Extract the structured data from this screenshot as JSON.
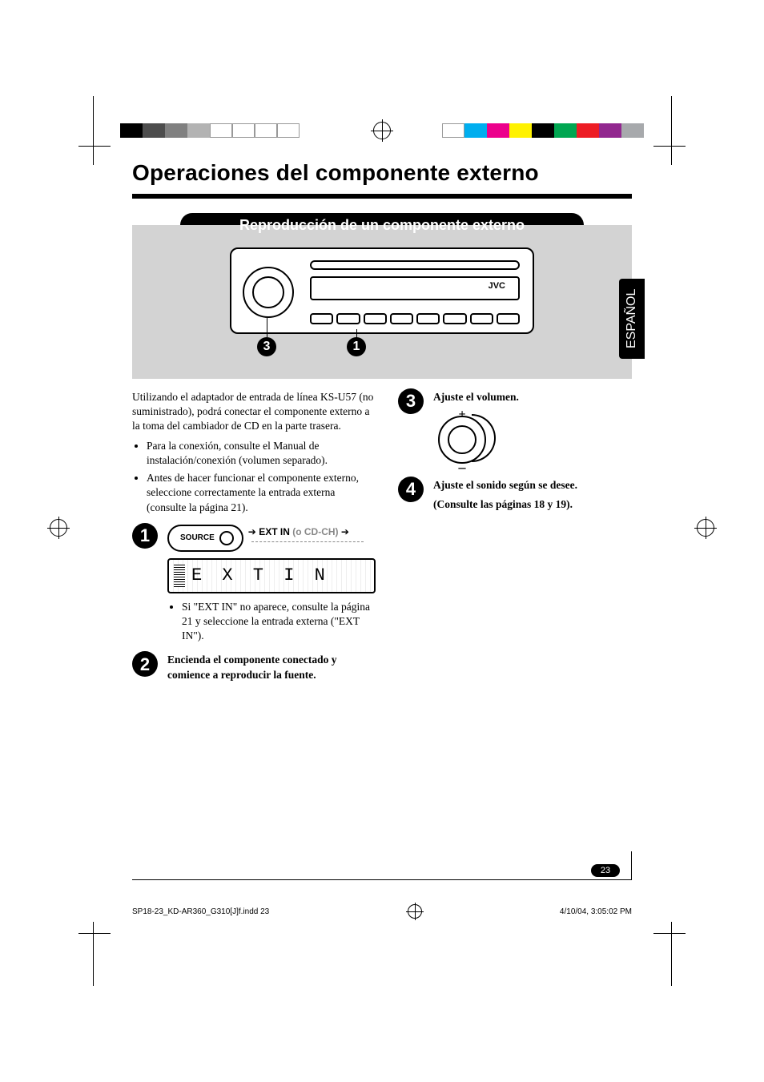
{
  "registration": {
    "left_bars": [
      "#000000",
      "#4d4d4d",
      "#808080",
      "#b3b3b3",
      "gap",
      "gap",
      "gap",
      "gap"
    ],
    "right_bars": [
      "gap",
      "#00aeef",
      "#ec008c",
      "#fff200",
      "#000000",
      "#00a651",
      "#ed1c24",
      "#92278f",
      "#a7a9ac"
    ]
  },
  "heading": "Operaciones del componente externo",
  "subhead": "Reproducción de un componente externo",
  "lang_tab": "ESPAÑOL",
  "hero": {
    "brand": "JVC",
    "callout_3": "3",
    "callout_1": "1"
  },
  "intro": "Utilizando el adaptador de entrada de línea KS-U57 (no suministrado), podrá conectar el componente externo a la toma del cambiador de CD en la parte trasera.",
  "intro_bullets": [
    "Para la conexión, consulte el Manual de instalación/conexión (volumen separado).",
    "Antes de hacer funcionar el componente externo, seleccione correctamente la entrada externa (consulte la página 21)."
  ],
  "step1": {
    "num": "1",
    "source_label": "SOURCE",
    "arrow": "➔",
    "extin": "EXT IN",
    "cdch": "(o CD-CH)",
    "lcd_text": "E X T  I N",
    "note": "Si \"EXT IN\" no aparece, consulte la página 21 y seleccione la entrada externa (\"EXT IN\")."
  },
  "step2": {
    "num": "2",
    "text": "Encienda el componente conectado y comience a reproducir la fuente."
  },
  "step3": {
    "num": "3",
    "text": "Ajuste el volumen.",
    "plus": "+",
    "minus": "–"
  },
  "step4": {
    "num": "4",
    "line1": "Ajuste el sonido según se desee.",
    "line2": "(Consulte las páginas 18 y 19)."
  },
  "page_number": "23",
  "footer": {
    "left": "SP18-23_KD-AR360_G310[J]f.indd   23",
    "right": "4/10/04, 3:05:02 PM"
  }
}
